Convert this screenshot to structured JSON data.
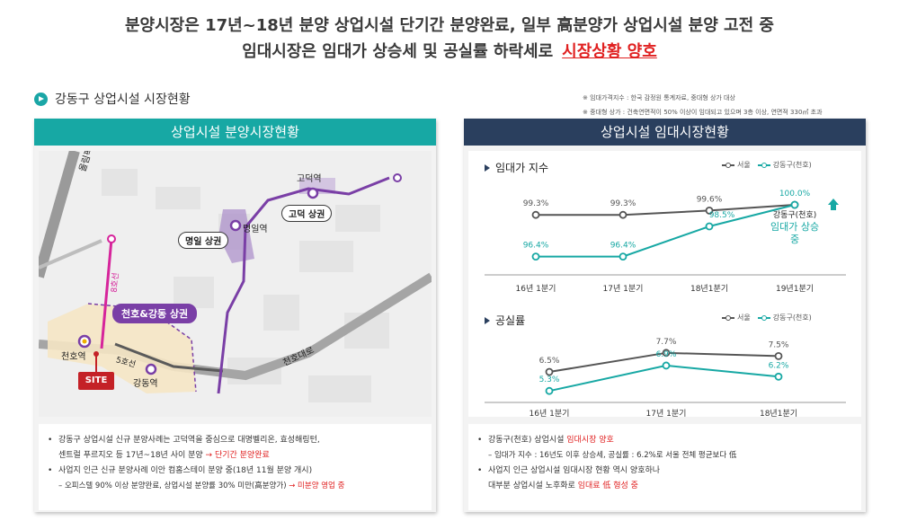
{
  "headline": {
    "line1": "분양시장은 17년~18년 분양 상업시설 단기간 분양완료, 일부 高분양가 상업시설 분양 고전 중",
    "line2_prefix": "임대시장은 임대가 상승세 및 공실률 하락세로",
    "line2_highlight": "시장상황 양호"
  },
  "section_title": "강동구 상업시설 시장현황",
  "notes": [
    "※ 임대가격지수 : 한국 감정원 통계자료, 중대형 상가 대상",
    "※ 중대형 상가 : 건축연면적이 50% 이상이 임대되고 있으며 3층 이상, 연면적 330㎡ 초과"
  ],
  "left_panel": {
    "title": "상업시설 분양시장현황",
    "map": {
      "station_godeok": "고덕역",
      "station_myeongil": "명일역",
      "station_cheonho": "천호역",
      "station_gangdong": "강동역",
      "road_olympic": "올림픽대로",
      "road_cheonho": "천호대로",
      "line_5": "5호선",
      "line_8": "8호선",
      "zone_godeok": "고덕 상권",
      "zone_myeongil": "명일 상권",
      "zone_cheonho": "천호&강동 상권",
      "site": "SITE"
    },
    "bullets": [
      {
        "text": "강동구 상업시설 신규 분양사례는 고덕역을 중심으로 대명벨리온, 효성해링턴,",
        "text2": "센트럴 푸르지오 등 17년~18년 사이 분양",
        "highlight": "→ 단기간 분양완료"
      },
      {
        "text": "사업지 인근 신규 분양사례 이안 컴홈스테이 분양 중(18년 11월 분양 개시)",
        "sub": "– 오피스텔 90% 이상 분양완료, 상업시설 분양률 30% 미만(高분양가)",
        "sub_highlight": "→ 미분양 영업 중"
      }
    ]
  },
  "right_panel": {
    "title": "상업시설 임대시장현황",
    "chart1_title": "임대가 지수",
    "chart2_title": "공실률",
    "legend_seoul": "서울",
    "legend_gangdong": "강동구(천호)",
    "callout_line1": "강동구(천호)",
    "callout_line2": "임대가 상승",
    "callout_line3": "중",
    "bullets": [
      {
        "text": "강동구(천호) 상업시설",
        "highlight": "임대시장 양호",
        "sub": "– 임대가 지수 : 16년도 이후 상승세,  공실률 : 6.2%로 서울 전체 평균보다 低"
      },
      {
        "text": "사업지 인근 상업시설 임대시장 현황 역시 양호하나",
        "text2": "대부분 상업시설 노후화로",
        "highlight": "임대료 低 형성 중"
      }
    ]
  },
  "chart_data": [
    {
      "type": "line",
      "title": "임대가 지수",
      "categories": [
        "16년 1분기",
        "17년 1분기",
        "18년1분기",
        "19년1분기"
      ],
      "series": [
        {
          "name": "서울",
          "values": [
            99.3,
            99.3,
            99.6,
            100.0
          ],
          "labels": [
            "99.3%",
            "99.3%",
            "99.6%",
            ""
          ]
        },
        {
          "name": "강동구(천호)",
          "values": [
            96.4,
            96.4,
            98.5,
            100.0
          ],
          "labels": [
            "96.4%",
            "96.4%",
            "98.5%",
            "100.0%"
          ]
        }
      ],
      "ylim": [
        95.5,
        100.5
      ],
      "colors": {
        "서울": "#555555",
        "강동구(천호)": "#17a8a4"
      }
    },
    {
      "type": "line",
      "title": "공실률",
      "categories": [
        "16년 1분기",
        "17년 1분기",
        "18년1분기"
      ],
      "series": [
        {
          "name": "서울",
          "values": [
            6.5,
            7.7,
            7.5
          ],
          "labels": [
            "6.5%",
            "7.7%",
            "7.5%"
          ]
        },
        {
          "name": "강동구(천호)",
          "values": [
            5.3,
            6.9,
            6.2
          ],
          "labels": [
            "5.3%",
            "6.9%",
            "6.2%"
          ]
        }
      ],
      "ylim": [
        4.8,
        8.2
      ],
      "colors": {
        "서울": "#555555",
        "강동구(천호)": "#17a8a4"
      }
    }
  ]
}
